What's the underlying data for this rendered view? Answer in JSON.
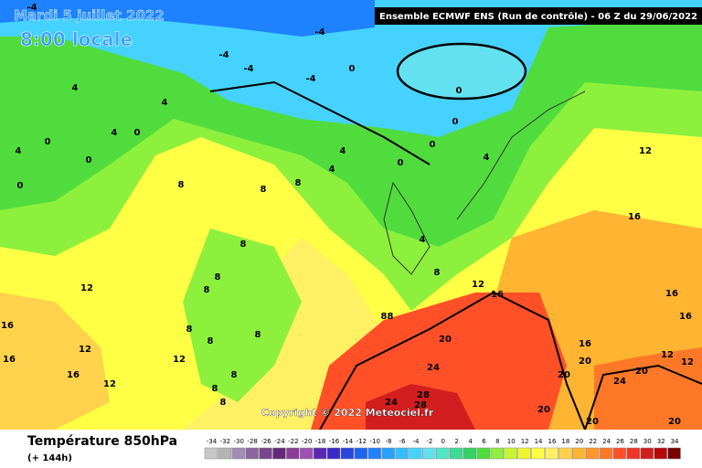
{
  "header": {
    "date": "Mardi 5 juillet 2022",
    "time": "8:00 locale",
    "run": "Ensemble ECMWF ENS  (Run de contrôle)  -  06 Z du 29/06/2022",
    "copyright": "Copyright © 2022 Meteociel.fr"
  },
  "footer": {
    "title": "Température 850hPa",
    "lead": "(+ 144h)"
  },
  "legend": {
    "values": [
      -34,
      -32,
      -30,
      -28,
      -26,
      -24,
      -22,
      -20,
      -18,
      -16,
      -14,
      -12,
      -10,
      -8,
      -6,
      -4,
      -2,
      0,
      2,
      4,
      6,
      8,
      10,
      12,
      14,
      16,
      18,
      20,
      22,
      24,
      26,
      28,
      30,
      32,
      34
    ],
    "colors": [
      "#c8c8c8",
      "#b4b4b4",
      "#a08cb4",
      "#8c64a0",
      "#78468c",
      "#64287a",
      "#8c3c96",
      "#a050b4",
      "#5a28b4",
      "#3c28c8",
      "#2846dc",
      "#1e64f0",
      "#1e82ff",
      "#28a0ff",
      "#32beff",
      "#46d2ff",
      "#64e1f0",
      "#50e6c8",
      "#3cdc96",
      "#32d264",
      "#50dc3c",
      "#8cf03c",
      "#c8f532",
      "#f0f532",
      "#ffff46",
      "#fff064",
      "#ffd24b",
      "#ffb432",
      "#ff9628",
      "#ff7828",
      "#ff5028",
      "#f03228",
      "#d21e1e",
      "#b40a0a",
      "#780000"
    ]
  },
  "map_labels": [
    -4,
    -4,
    -4,
    -4,
    -4,
    0,
    0,
    0,
    0,
    0,
    0,
    0,
    0,
    0,
    4,
    4,
    4,
    4,
    4,
    4,
    4,
    4,
    8,
    8,
    8,
    8,
    8,
    8,
    8,
    8,
    8,
    8,
    8,
    8,
    8,
    8,
    8,
    12,
    12,
    12,
    12,
    12,
    12,
    12,
    12,
    16,
    16,
    16,
    16,
    16,
    16,
    16,
    16,
    20,
    20,
    20,
    20,
    20,
    20,
    20,
    24,
    24,
    24,
    28,
    28
  ]
}
